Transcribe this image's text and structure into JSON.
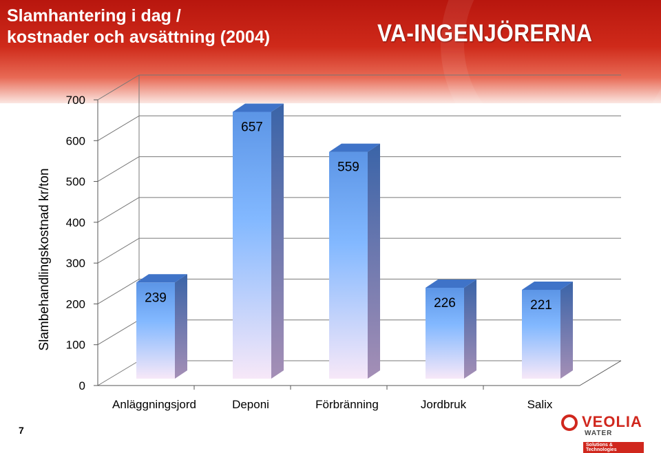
{
  "slide": {
    "title": "Slamhantering i dag /\nkostnader och avsättning (2004)",
    "brand": "VA-INGENJÖRERNA",
    "page_number": "7",
    "footer_logo": {
      "word": "VEOLIA",
      "sub": "WATER",
      "tagline": "Solutions & Technologies"
    },
    "colors": {
      "header": "#cf2a1a",
      "bar_top": "#4d86d8",
      "bar_light": "#7fb3ff",
      "bar_bottom": "#f5e6f7"
    }
  },
  "chart_data": {
    "type": "bar",
    "title": "",
    "xlabel": "",
    "ylabel": "Slambehandlingskostnad kr/ton",
    "categories": [
      "Anläggningsjord",
      "Deponi",
      "Förbränning",
      "Jordbruk",
      "Salix"
    ],
    "values": [
      239,
      657,
      559,
      226,
      221
    ],
    "data_labels": [
      "239",
      "657",
      "559",
      "226",
      "221"
    ],
    "ylim": [
      0,
      700
    ],
    "yticks": [
      0,
      100,
      200,
      300,
      400,
      500,
      600,
      700
    ],
    "grid": true,
    "style": "3d"
  }
}
